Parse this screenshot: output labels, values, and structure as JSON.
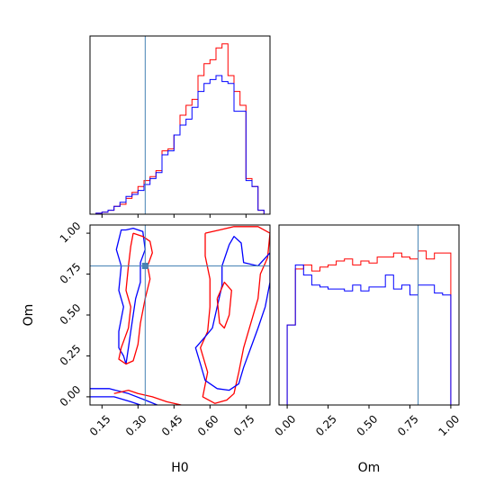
{
  "chart_data": {
    "type": "corner",
    "parameters": [
      "H0",
      "Om"
    ],
    "truth": {
      "H0": 0.33,
      "Om": 0.8
    },
    "colors": {
      "red": "#ff0000",
      "blue": "#0000ff",
      "truth": "#4682b4",
      "axes": "#000000"
    },
    "panels": {
      "h0_hist": {
        "xlim": [
          0.1,
          0.85
        ],
        "bin_edges": [
          0.1,
          0.125,
          0.15,
          0.175,
          0.2,
          0.225,
          0.25,
          0.275,
          0.3,
          0.325,
          0.35,
          0.375,
          0.4,
          0.425,
          0.45,
          0.475,
          0.5,
          0.525,
          0.55,
          0.575,
          0.6,
          0.625,
          0.65,
          0.675,
          0.7,
          0.725,
          0.75,
          0.775,
          0.8,
          0.825,
          0.85
        ],
        "series": [
          {
            "name": "red",
            "color": "#ff0000",
            "values": [
              0,
              0.005,
              0.01,
              0.02,
              0.04,
              0.05,
              0.08,
              0.11,
              0.14,
              0.17,
              0.19,
              0.22,
              0.32,
              0.33,
              0.4,
              0.5,
              0.55,
              0.58,
              0.7,
              0.76,
              0.78,
              0.84,
              0.86,
              0.7,
              0.62,
              0.55,
              0.18,
              0.14,
              0.02,
              0
            ]
          },
          {
            "name": "blue",
            "color": "#0000ff",
            "values": [
              0,
              0.005,
              0.01,
              0.02,
              0.04,
              0.06,
              0.09,
              0.1,
              0.12,
              0.15,
              0.18,
              0.21,
              0.3,
              0.32,
              0.4,
              0.45,
              0.48,
              0.54,
              0.62,
              0.66,
              0.68,
              0.7,
              0.67,
              0.66,
              0.52,
              0.52,
              0.17,
              0.14,
              0.02,
              0
            ]
          }
        ]
      },
      "om_hist": {
        "xlim": [
          -0.05,
          1.05
        ],
        "xticks": [
          "0.00",
          "0.25",
          "0.50",
          "0.75",
          "1.00"
        ],
        "bin_edges": [
          0.0,
          0.05,
          0.1,
          0.15,
          0.2,
          0.25,
          0.3,
          0.35,
          0.4,
          0.45,
          0.5,
          0.55,
          0.6,
          0.65,
          0.7,
          0.75,
          0.8,
          0.85,
          0.9,
          0.95,
          1.0
        ],
        "series": [
          {
            "name": "red",
            "color": "#ff0000",
            "values": [
              0.4,
              0.68,
              0.7,
              0.67,
              0.69,
              0.7,
              0.72,
              0.73,
              0.7,
              0.72,
              0.71,
              0.74,
              0.74,
              0.76,
              0.74,
              0.73,
              0.77,
              0.73,
              0.76,
              0.76
            ]
          },
          {
            "name": "blue",
            "color": "#0000ff",
            "values": [
              0.4,
              0.7,
              0.65,
              0.6,
              0.59,
              0.58,
              0.58,
              0.57,
              0.6,
              0.57,
              0.59,
              0.59,
              0.65,
              0.58,
              0.6,
              0.55,
              0.6,
              0.6,
              0.56,
              0.55
            ]
          }
        ]
      },
      "joint": {
        "xlabel": "H0",
        "ylabel": "Om",
        "xlim": [
          0.1,
          0.85
        ],
        "ylim": [
          -0.05,
          1.05
        ],
        "xticks": [
          "0.15",
          "0.30",
          "0.45",
          "0.60",
          "0.75"
        ],
        "yticks": [
          "0.00",
          "0.25",
          "0.50",
          "0.75",
          "1.00"
        ],
        "contours": [
          {
            "name": "blue-left",
            "color": "#0000ff",
            "points": [
              [
                0.25,
                1.02
              ],
              [
                0.28,
                1.03
              ],
              [
                0.32,
                1.01
              ],
              [
                0.33,
                0.9
              ],
              [
                0.31,
                0.82
              ],
              [
                0.31,
                0.7
              ],
              [
                0.29,
                0.6
              ],
              [
                0.28,
                0.5
              ],
              [
                0.27,
                0.4
              ],
              [
                0.26,
                0.3
              ],
              [
                0.25,
                0.2
              ],
              [
                0.24,
                0.25
              ],
              [
                0.22,
                0.3
              ],
              [
                0.22,
                0.4
              ],
              [
                0.24,
                0.55
              ],
              [
                0.22,
                0.65
              ],
              [
                0.23,
                0.8
              ],
              [
                0.21,
                0.9
              ],
              [
                0.23,
                1.02
              ],
              [
                0.25,
                1.02
              ]
            ]
          },
          {
            "name": "blue-bottom",
            "color": "#0000ff",
            "points": [
              [
                0.1,
                0.05
              ],
              [
                0.18,
                0.05
              ],
              [
                0.26,
                0.02
              ],
              [
                0.33,
                -0.02
              ],
              [
                0.38,
                -0.05
              ]
            ]
          },
          {
            "name": "blue-bottom-inner",
            "color": "#0000ff",
            "points": [
              [
                0.1,
                0.0
              ],
              [
                0.2,
                0.0
              ],
              [
                0.27,
                -0.03
              ],
              [
                0.31,
                -0.05
              ]
            ]
          },
          {
            "name": "red-left",
            "color": "#ff0000",
            "points": [
              [
                0.28,
                1.0
              ],
              [
                0.32,
                0.98
              ],
              [
                0.35,
                0.95
              ],
              [
                0.36,
                0.88
              ],
              [
                0.34,
                0.8
              ],
              [
                0.35,
                0.72
              ],
              [
                0.33,
                0.6
              ],
              [
                0.31,
                0.45
              ],
              [
                0.3,
                0.32
              ],
              [
                0.28,
                0.22
              ],
              [
                0.25,
                0.2
              ],
              [
                0.22,
                0.23
              ],
              [
                0.23,
                0.3
              ],
              [
                0.26,
                0.42
              ],
              [
                0.27,
                0.55
              ],
              [
                0.25,
                0.65
              ],
              [
                0.26,
                0.8
              ],
              [
                0.27,
                0.92
              ],
              [
                0.28,
                1.0
              ]
            ]
          },
          {
            "name": "red-bottom",
            "color": "#ff0000",
            "points": [
              [
                0.2,
                0.02
              ],
              [
                0.26,
                0.04
              ],
              [
                0.3,
                0.02
              ],
              [
                0.36,
                0.0
              ],
              [
                0.42,
                -0.03
              ],
              [
                0.48,
                -0.05
              ]
            ]
          },
          {
            "name": "red-right",
            "color": "#ff0000",
            "points": [
              [
                0.58,
                1.0
              ],
              [
                0.64,
                1.02
              ],
              [
                0.7,
                1.04
              ],
              [
                0.8,
                1.04
              ],
              [
                0.85,
                1.0
              ],
              [
                0.84,
                0.85
              ],
              [
                0.81,
                0.75
              ],
              [
                0.8,
                0.6
              ],
              [
                0.77,
                0.45
              ],
              [
                0.74,
                0.3
              ],
              [
                0.72,
                0.15
              ],
              [
                0.7,
                0.02
              ],
              [
                0.67,
                -0.02
              ],
              [
                0.62,
                -0.04
              ],
              [
                0.57,
                0.0
              ],
              [
                0.59,
                0.15
              ],
              [
                0.56,
                0.3
              ],
              [
                0.59,
                0.4
              ],
              [
                0.6,
                0.55
              ],
              [
                0.6,
                0.72
              ],
              [
                0.58,
                0.86
              ],
              [
                0.58,
                1.0
              ]
            ]
          },
          {
            "name": "blue-right",
            "color": "#0000ff",
            "points": [
              [
                0.68,
                0.93
              ],
              [
                0.7,
                0.98
              ],
              [
                0.73,
                0.94
              ],
              [
                0.74,
                0.82
              ],
              [
                0.8,
                0.8
              ],
              [
                0.85,
                0.88
              ],
              [
                0.85,
                0.7
              ],
              [
                0.83,
                0.55
              ],
              [
                0.8,
                0.42
              ],
              [
                0.77,
                0.3
              ],
              [
                0.74,
                0.18
              ],
              [
                0.72,
                0.08
              ],
              [
                0.68,
                0.04
              ],
              [
                0.63,
                0.05
              ],
              [
                0.58,
                0.1
              ],
              [
                0.56,
                0.2
              ],
              [
                0.54,
                0.3
              ],
              [
                0.57,
                0.35
              ],
              [
                0.61,
                0.42
              ],
              [
                0.63,
                0.55
              ],
              [
                0.65,
                0.68
              ],
              [
                0.65,
                0.8
              ],
              [
                0.68,
                0.93
              ]
            ]
          },
          {
            "name": "red-right-inner",
            "color": "#ff0000",
            "points": [
              [
                0.63,
                0.6
              ],
              [
                0.66,
                0.7
              ],
              [
                0.69,
                0.65
              ],
              [
                0.68,
                0.5
              ],
              [
                0.66,
                0.42
              ],
              [
                0.64,
                0.45
              ],
              [
                0.63,
                0.6
              ]
            ]
          }
        ]
      }
    }
  }
}
